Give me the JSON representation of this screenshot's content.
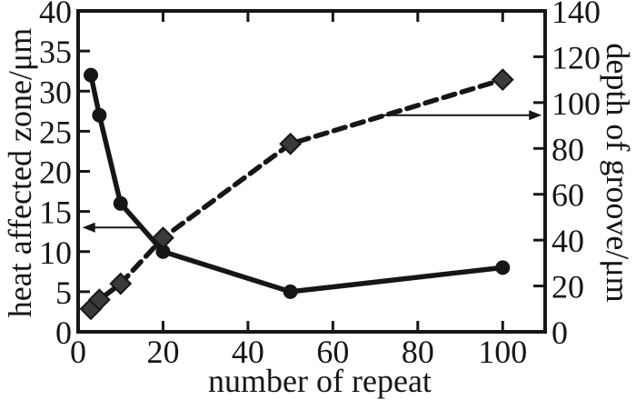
{
  "chart_data": {
    "type": "line",
    "xlabel": "number of repeat",
    "ylabel_left": "heat affected zone/μm",
    "ylabel_right": "depth of groove/μm",
    "xlim": [
      0,
      110
    ],
    "ylim_left": [
      0,
      40
    ],
    "ylim_right": [
      0,
      140
    ],
    "xticks": [
      0,
      20,
      40,
      60,
      80,
      100
    ],
    "yticks_left": [
      0,
      5,
      10,
      15,
      20,
      25,
      30,
      35,
      40
    ],
    "yticks_right": [
      0,
      20,
      40,
      60,
      80,
      100,
      120,
      140
    ],
    "x": [
      3,
      5,
      10,
      20,
      50,
      100
    ],
    "series": [
      {
        "name": "heat affected zone",
        "axis": "left",
        "line_style": "solid",
        "marker": "circle",
        "values": [
          32,
          27,
          16,
          10,
          5,
          8
        ]
      },
      {
        "name": "depth of groove",
        "axis": "right",
        "line_style": "dashed",
        "marker": "diamond",
        "values": [
          10,
          14,
          21,
          41,
          82,
          110
        ]
      }
    ],
    "annotations": [
      {
        "name": "left-axis-pointer",
        "axis": "left",
        "y": 13,
        "x_from": 14.8,
        "x_to": 1.0,
        "head": "left"
      },
      {
        "name": "right-axis-pointer",
        "axis": "right",
        "y": 94.5,
        "x_from": 72,
        "x_to": 109.2,
        "head": "right"
      }
    ],
    "grid": false,
    "legend": "none",
    "colors": {
      "ink": "#161616",
      "diamond_fill": "#3a3a3a",
      "background": "#ffffff"
    }
  }
}
